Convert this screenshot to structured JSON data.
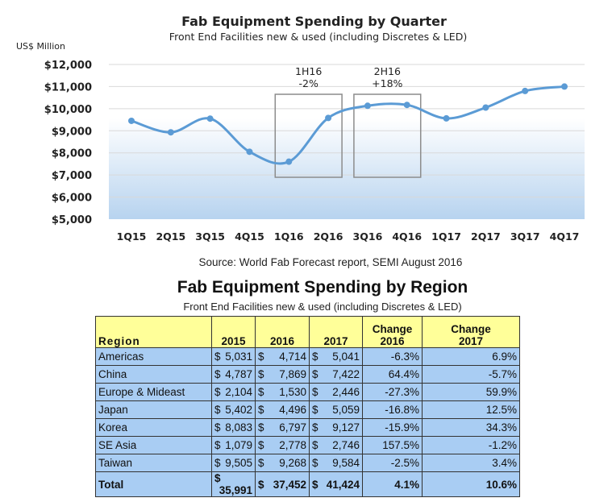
{
  "chart_data": [
    {
      "type": "area",
      "title": "Fab Equipment Spending by Quarter",
      "subtitle": "Front End Facilities new & used (including Discretes & LED)",
      "ylabel": "US$ Million",
      "categories": [
        "1Q15",
        "2Q15",
        "3Q15",
        "4Q15",
        "1Q16",
        "2Q16",
        "3Q16",
        "4Q16",
        "1Q17",
        "2Q17",
        "3Q17",
        "4Q17"
      ],
      "values": [
        9450,
        8930,
        9550,
        8050,
        7600,
        9580,
        10130,
        10170,
        9560,
        10050,
        10800,
        11000
      ],
      "ylim": [
        5000,
        12000
      ],
      "yticks": [
        "$5,000",
        "$6,000",
        "$7,000",
        "$8,000",
        "$9,000",
        "$10,000",
        "$11,000",
        "$12,000"
      ],
      "grid": true,
      "line_color": "#5b9bd5",
      "annotations": [
        {
          "label_line1": "1H16",
          "label_line2": "-2%",
          "span": [
            "1Q16",
            "2Q16"
          ]
        },
        {
          "label_line1": "2H16",
          "label_line2": "+18%",
          "span": [
            "3Q16",
            "4Q16"
          ]
        }
      ]
    },
    {
      "type": "table",
      "title": "Fab Equipment Spending by Region",
      "subtitle": "Front End Facilities new & used (including Discretes & LED)",
      "headers": [
        "Region",
        "2015",
        "2016",
        "2017",
        "Change 2016",
        "Change 2017"
      ],
      "rows": [
        [
          "Americas",
          "5,031",
          "4,714",
          "5,041",
          "-6.3%",
          "6.9%"
        ],
        [
          "China",
          "4,787",
          "7,869",
          "7,422",
          "64.4%",
          "-5.7%"
        ],
        [
          "Europe & Mideast",
          "2,104",
          "1,530",
          "2,446",
          "-27.3%",
          "59.9%"
        ],
        [
          "Japan",
          "5,402",
          "4,496",
          "5,059",
          "-16.8%",
          "12.5%"
        ],
        [
          "Korea",
          "8,083",
          "6,797",
          "9,127",
          "-15.9%",
          "34.3%"
        ],
        [
          "SE Asia",
          "1,079",
          "2,778",
          "2,746",
          "157.5%",
          "-1.2%"
        ],
        [
          "Taiwan",
          "9,505",
          "9,268",
          "9,584",
          "-2.5%",
          "3.4%"
        ]
      ],
      "total": [
        "Total",
        "35,991",
        "37,452",
        "41,424",
        "4.1%",
        "10.6%"
      ],
      "currency": "$",
      "header_color": "#ffff99",
      "cell_color": "#a9cdf3"
    }
  ],
  "source": "Source: World Fab Forecast report, SEMI August 2016"
}
